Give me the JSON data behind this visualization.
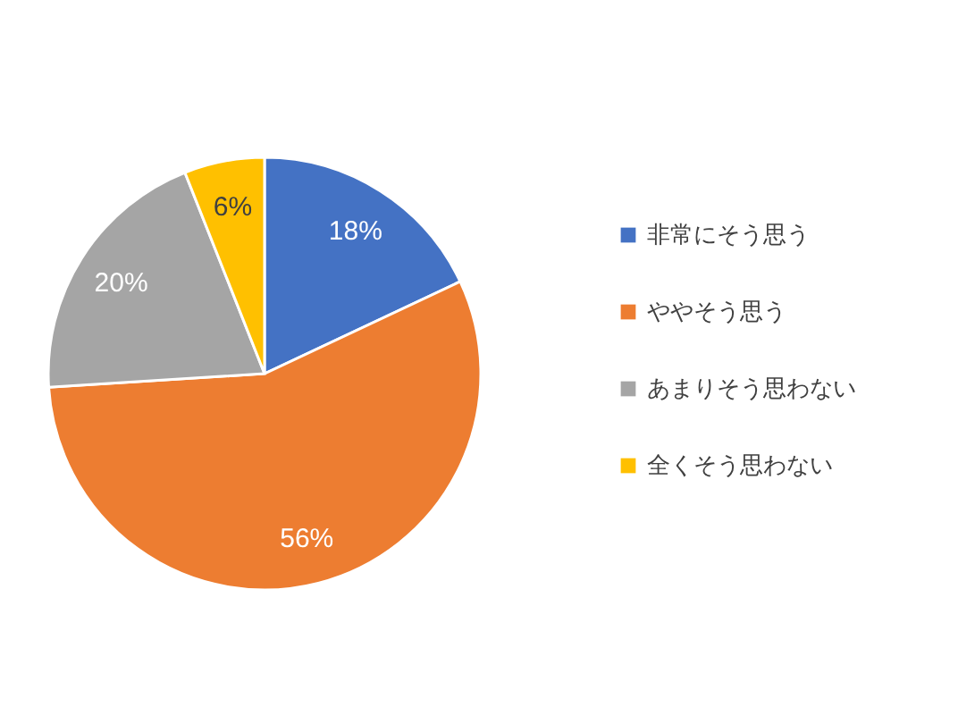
{
  "chart_data": {
    "type": "pie",
    "categories": [
      "非常にそう思う",
      "ややそう思う",
      "あまりそう思わない",
      "全くそう思わない"
    ],
    "values": [
      18,
      56,
      20,
      6
    ],
    "colors": [
      "#4472c4",
      "#ed7d31",
      "#a5a5a5",
      "#ffc000"
    ],
    "value_labels": [
      "18%",
      "56%",
      "20%",
      "6%"
    ],
    "legend": "right"
  }
}
